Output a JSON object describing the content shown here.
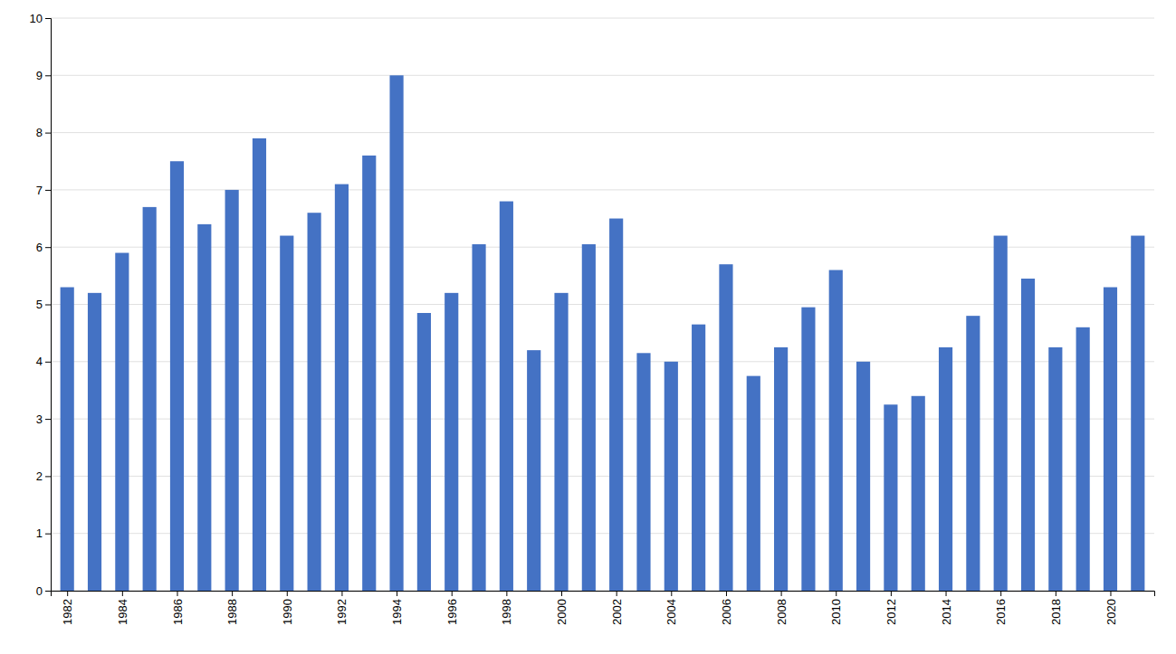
{
  "chart_data": {
    "type": "bar",
    "x": [
      1982,
      1983,
      1984,
      1985,
      1986,
      1987,
      1988,
      1989,
      1990,
      1991,
      1992,
      1993,
      1994,
      1995,
      1996,
      1997,
      1998,
      1999,
      2000,
      2001,
      2002,
      2003,
      2004,
      2005,
      2006,
      2007,
      2008,
      2009,
      2010,
      2011,
      2012,
      2013,
      2014,
      2015,
      2016,
      2017,
      2018,
      2019,
      2020,
      2021
    ],
    "values": [
      5.3,
      5.2,
      5.9,
      6.7,
      7.5,
      6.4,
      7.0,
      7.9,
      6.2,
      6.6,
      7.1,
      7.6,
      9.0,
      4.85,
      5.2,
      6.05,
      6.8,
      4.2,
      5.2,
      6.05,
      6.5,
      4.15,
      4.0,
      4.65,
      5.7,
      3.75,
      4.25,
      4.95,
      5.6,
      4.0,
      3.25,
      3.4,
      4.25,
      4.8,
      6.2,
      5.45,
      4.25,
      4.6,
      5.3,
      6.2
    ],
    "color": "#4472C4",
    "xlim": [
      1981.4,
      2021.6
    ],
    "xticks": [
      1982,
      1984,
      1986,
      1988,
      1990,
      1992,
      1994,
      1996,
      1998,
      2000,
      2002,
      2004,
      2006,
      2008,
      2010,
      2012,
      2014,
      2016,
      2018,
      2020
    ],
    "ylim": [
      0,
      10
    ],
    "yticks": [
      0,
      1,
      2,
      3,
      4,
      5,
      6,
      7,
      8,
      9,
      10
    ],
    "grid": true
  }
}
